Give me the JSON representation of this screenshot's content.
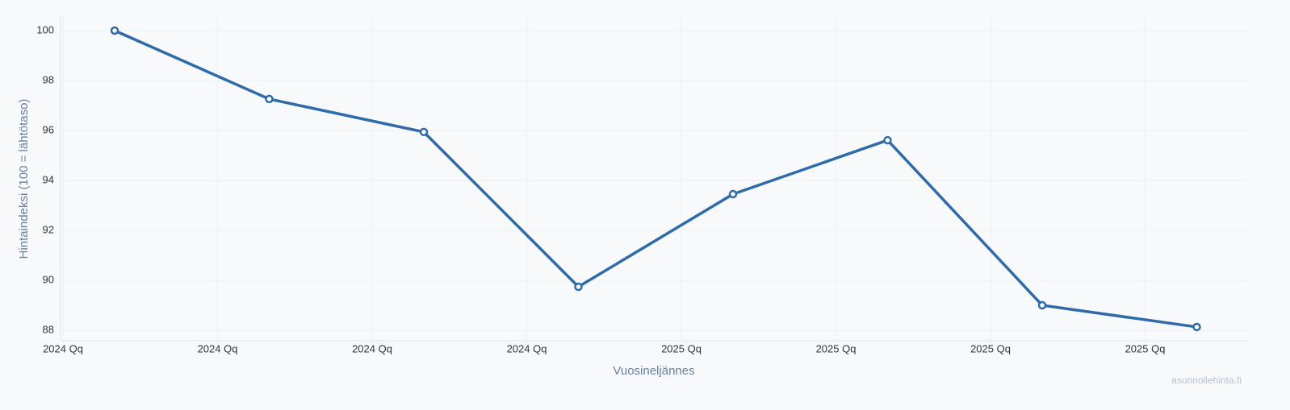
{
  "chart_data": {
    "type": "line",
    "categories": [
      "2024 Qq",
      "2024 Qq",
      "2024 Qq",
      "2024 Qq",
      "2025 Qq",
      "2025 Qq",
      "2025 Qq",
      "2025 Qq"
    ],
    "series": [
      {
        "name": "Hintaindeksi",
        "color": "#2f6ba8",
        "values": [
          100,
          97.26,
          95.94,
          89.74,
          93.45,
          95.61,
          89.0,
          88.13
        ]
      }
    ],
    "y_label": "Hintaindeksi (100 = lähtötaso)",
    "x_label": "Vuosineljännes",
    "watermark": "asunnollehinta.fi",
    "ylim": [
      87.58,
      100.58
    ],
    "yticks": [
      88,
      90,
      92,
      94,
      96,
      98,
      100
    ],
    "grid": true
  }
}
